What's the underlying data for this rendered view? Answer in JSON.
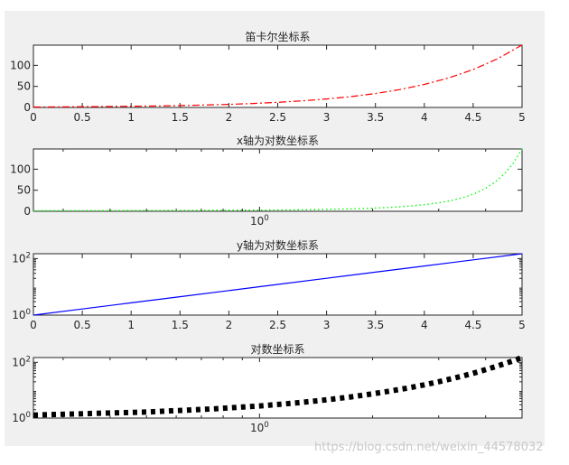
{
  "figure": {
    "background": "#f0f0f0"
  },
  "watermark": "https://blog.csdn.net/weixin_44578032",
  "chart_data": [
    {
      "type": "line",
      "title": "笛卡尔坐标系",
      "xscale": "linear",
      "yscale": "linear",
      "xlim": [
        0,
        5
      ],
      "ylim": [
        0,
        148
      ],
      "xticks": [
        0,
        0.5,
        1,
        1.5,
        2,
        2.5,
        3,
        3.5,
        4,
        4.5,
        5
      ],
      "xticklabels": [
        "0",
        "0.5",
        "1",
        "1.5",
        "2",
        "2.5",
        "3",
        "3.5",
        "4",
        "4.5",
        "5"
      ],
      "yticks": [
        0,
        50,
        100
      ],
      "yticklabels": [
        "0",
        "50",
        "100"
      ],
      "series": [
        {
          "color": "#ff0000",
          "style": "dash-dot",
          "x": [
            0,
            0.25,
            0.5,
            0.75,
            1,
            1.25,
            1.5,
            1.75,
            2,
            2.25,
            2.5,
            2.75,
            3,
            3.25,
            3.5,
            3.75,
            4,
            4.25,
            4.5,
            4.75,
            5
          ],
          "y": [
            1,
            1.28,
            1.65,
            2.12,
            2.72,
            3.49,
            4.48,
            5.75,
            7.39,
            9.49,
            12.18,
            15.64,
            20.09,
            25.79,
            33.12,
            42.52,
            54.6,
            70.11,
            90.02,
            115.58,
            148.41
          ]
        }
      ]
    },
    {
      "type": "line",
      "title": "x轴为对数坐标系",
      "xscale": "log",
      "yscale": "linear",
      "xlim": [
        0.25,
        5
      ],
      "ylim": [
        0,
        148
      ],
      "xticks": [
        1
      ],
      "xticklabels": [
        "10^0"
      ],
      "yticks": [
        0,
        50,
        100
      ],
      "yticklabels": [
        "0",
        "50",
        "100"
      ],
      "series": [
        {
          "color": "#00ff00",
          "style": "dotted",
          "x": [
            0.25,
            0.5,
            0.75,
            1,
            1.25,
            1.5,
            1.75,
            2,
            2.25,
            2.5,
            2.75,
            3,
            3.25,
            3.5,
            3.75,
            4,
            4.25,
            4.5,
            4.75,
            5
          ],
          "y": [
            1.28,
            1.65,
            2.12,
            2.72,
            3.49,
            4.48,
            5.75,
            7.39,
            9.49,
            12.18,
            15.64,
            20.09,
            25.79,
            33.12,
            42.52,
            54.6,
            70.11,
            90.02,
            115.58,
            148.41
          ]
        }
      ]
    },
    {
      "type": "line",
      "title": "y轴为对数坐标系",
      "xscale": "linear",
      "yscale": "log",
      "xlim": [
        0,
        5
      ],
      "ylim": [
        1,
        148.41
      ],
      "xticks": [
        0,
        0.5,
        1,
        1.5,
        2,
        2.5,
        3,
        3.5,
        4,
        4.5,
        5
      ],
      "xticklabels": [
        "0",
        "0.5",
        "1",
        "1.5",
        "2",
        "2.5",
        "3",
        "3.5",
        "4",
        "4.5",
        "5"
      ],
      "yticks": [
        1,
        100
      ],
      "yticklabels": [
        "10^0",
        "10^2"
      ],
      "series": [
        {
          "color": "#0000ff",
          "style": "solid",
          "x": [
            0,
            0.5,
            1,
            1.5,
            2,
            2.5,
            3,
            3.5,
            4,
            4.5,
            5
          ],
          "y": [
            1,
            1.65,
            2.72,
            4.48,
            7.39,
            12.18,
            20.09,
            33.12,
            54.6,
            90.02,
            148.41
          ]
        }
      ]
    },
    {
      "type": "line",
      "title": "对数坐标系",
      "xscale": "log",
      "yscale": "log",
      "xlim": [
        0.25,
        5
      ],
      "ylim": [
        1,
        148.41
      ],
      "xticks": [
        1
      ],
      "xticklabels": [
        "10^0"
      ],
      "yticks": [
        1,
        100
      ],
      "yticklabels": [
        "10^0",
        "10^2"
      ],
      "series": [
        {
          "color": "#000000",
          "style": "thick-dotted",
          "x": [
            0.25,
            0.5,
            0.75,
            1,
            1.25,
            1.5,
            1.75,
            2,
            2.25,
            2.5,
            2.75,
            3,
            3.25,
            3.5,
            3.75,
            4,
            4.25,
            4.5,
            4.75,
            5
          ],
          "y": [
            1.28,
            1.65,
            2.12,
            2.72,
            3.49,
            4.48,
            5.75,
            7.39,
            9.49,
            12.18,
            15.64,
            20.09,
            25.79,
            33.12,
            42.52,
            54.6,
            70.11,
            90.02,
            115.58,
            148.41
          ]
        }
      ]
    }
  ]
}
